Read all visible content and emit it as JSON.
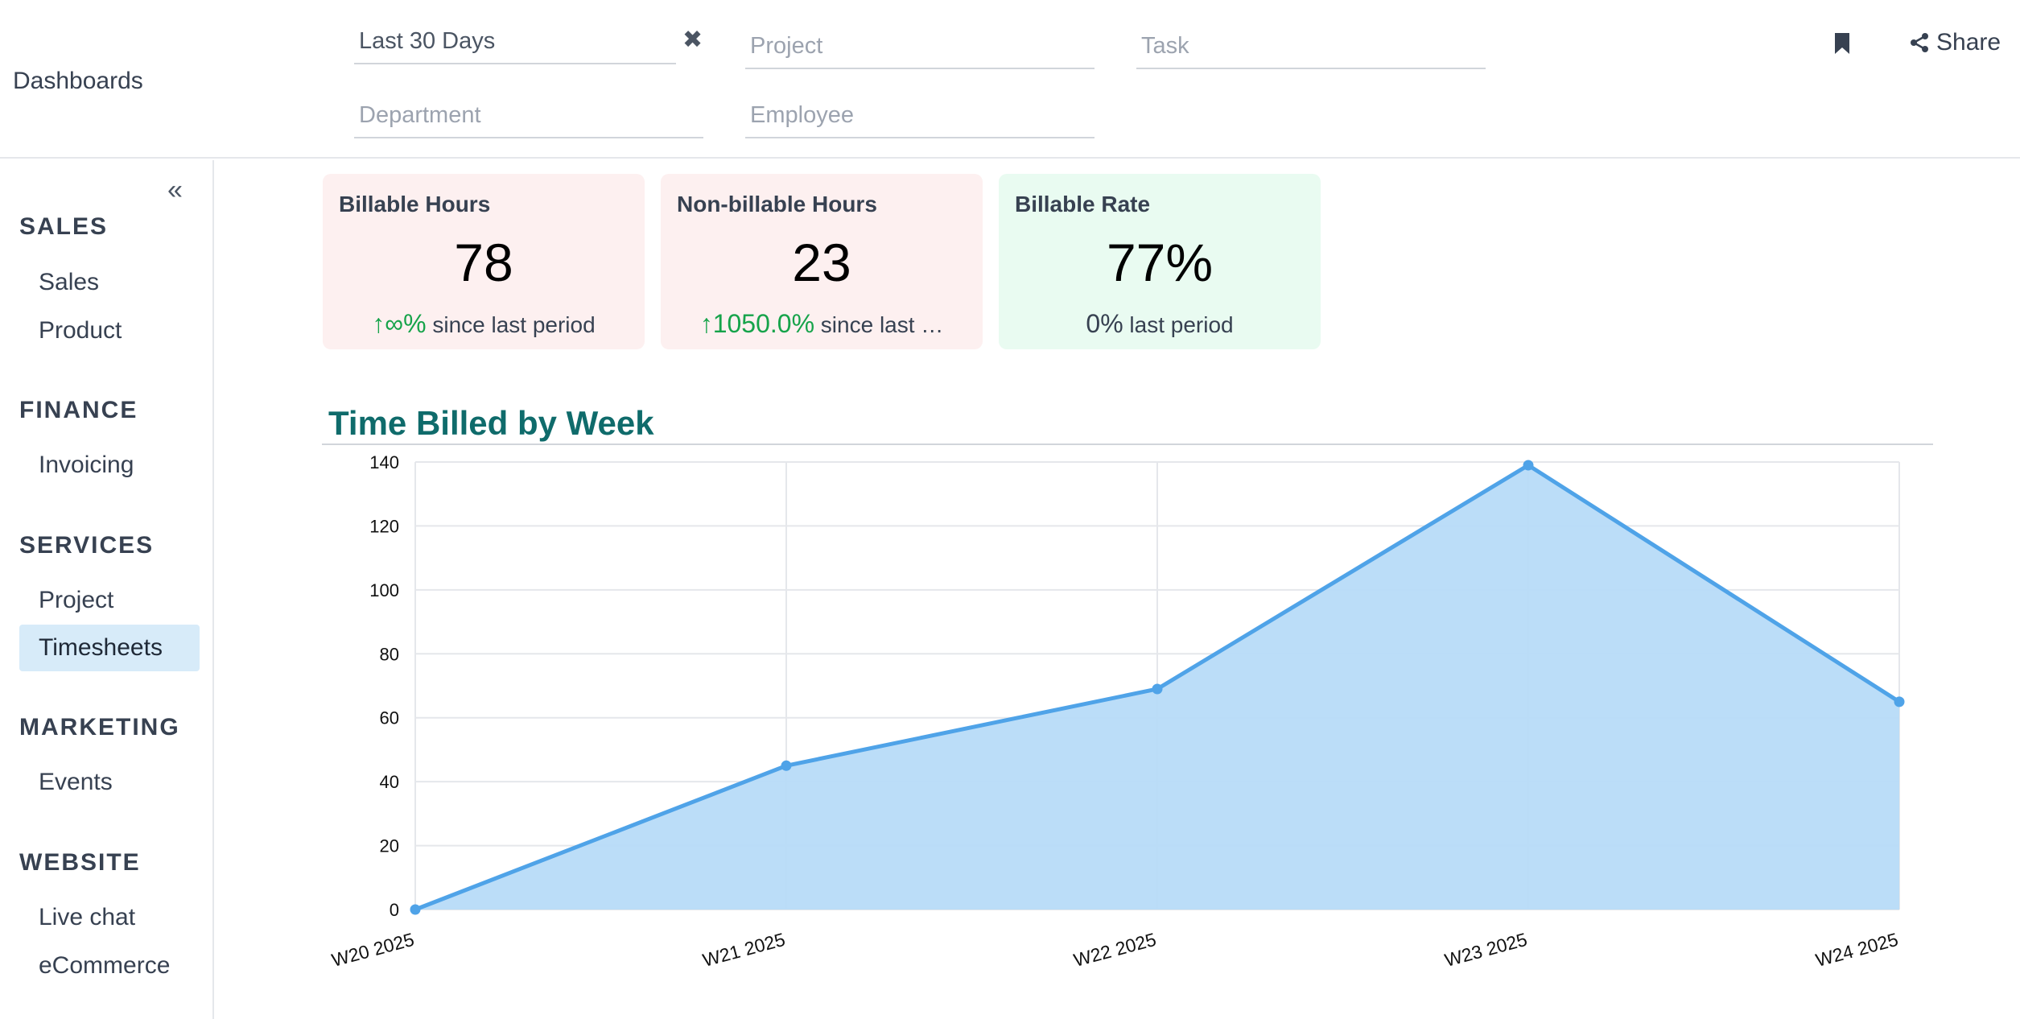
{
  "header": {
    "title": "Dashboards",
    "filters": {
      "date": "Last 30 Days",
      "project": "Project",
      "task": "Task",
      "department": "Department",
      "employee": "Employee"
    },
    "share_label": "Share"
  },
  "sidebar": {
    "sections": [
      {
        "title": "SALES",
        "items": [
          "Sales",
          "Product"
        ]
      },
      {
        "title": "FINANCE",
        "items": [
          "Invoicing"
        ]
      },
      {
        "title": "SERVICES",
        "items": [
          "Project",
          "Timesheets"
        ]
      },
      {
        "title": "MARKETING",
        "items": [
          "Events"
        ]
      },
      {
        "title": "WEBSITE",
        "items": [
          "Live chat",
          "eCommerce"
        ]
      }
    ],
    "active_item": "Timesheets"
  },
  "kpis": [
    {
      "title": "Billable Hours",
      "value": "78",
      "trend": "∞%",
      "foot": "since last period"
    },
    {
      "title": "Non-billable Hours",
      "value": "23",
      "trend": "1050.0%",
      "foot": "since last …"
    },
    {
      "title": "Billable Rate",
      "value": "77%",
      "trend": "0%",
      "foot": "last period"
    }
  ],
  "colors": {
    "accent": "#0f6b6b",
    "line": "#4fa3e8",
    "area": "#b7dbf8",
    "positive": "#16a34a"
  },
  "chart_data": {
    "type": "area",
    "title": "Time Billed by Week",
    "categories": [
      "W20 2025",
      "W21 2025",
      "W22 2025",
      "W23 2025",
      "W24 2025"
    ],
    "values": [
      0,
      45,
      69,
      139,
      65
    ],
    "ylim": [
      0,
      140
    ],
    "yticks": [
      0,
      20,
      40,
      60,
      80,
      100,
      120,
      140
    ],
    "grid": true
  }
}
